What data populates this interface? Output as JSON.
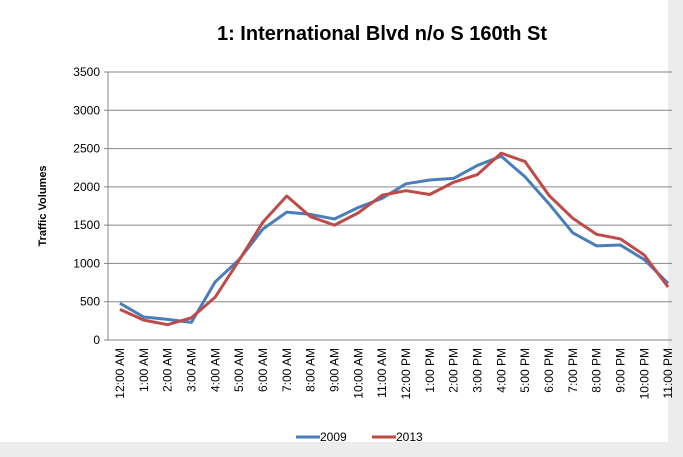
{
  "chart_data": {
    "type": "line",
    "title": "1: International Blvd n/o S 160th St",
    "y_label": "Traffic Volumes",
    "categories": [
      "12:00 AM",
      "1:00 AM",
      "2:00 AM",
      "3:00 AM",
      "4:00 AM",
      "5:00 AM",
      "6:00 AM",
      "7:00 AM",
      "8:00 AM",
      "9:00 AM",
      "10:00 AM",
      "11:00 AM",
      "12:00 PM",
      "1:00 PM",
      "2:00 PM",
      "3:00 PM",
      "4:00 PM",
      "5:00 PM",
      "6:00 PM",
      "7:00 PM",
      "8:00 PM",
      "9:00 PM",
      "10:00 PM",
      "11:00 PM"
    ],
    "series": [
      {
        "name": "2009",
        "color": "#4a7ebb",
        "values": [
          480,
          300,
          270,
          230,
          760,
          1050,
          1450,
          1670,
          1640,
          1580,
          1730,
          1850,
          2040,
          2090,
          2110,
          2280,
          2400,
          2130,
          1780,
          1400,
          1230,
          1240,
          1050,
          740
        ]
      },
      {
        "name": "2013",
        "color": "#be4b48",
        "values": [
          400,
          260,
          200,
          290,
          560,
          1040,
          1540,
          1880,
          1610,
          1500,
          1660,
          1890,
          1950,
          1900,
          2060,
          2160,
          2440,
          2330,
          1890,
          1590,
          1380,
          1320,
          1110,
          690
        ]
      }
    ],
    "ylim": [
      0,
      3500
    ],
    "yticks": [
      0,
      500,
      1000,
      1500,
      2000,
      2500,
      3000,
      3500
    ],
    "grid": true,
    "legend": "bottom"
  }
}
